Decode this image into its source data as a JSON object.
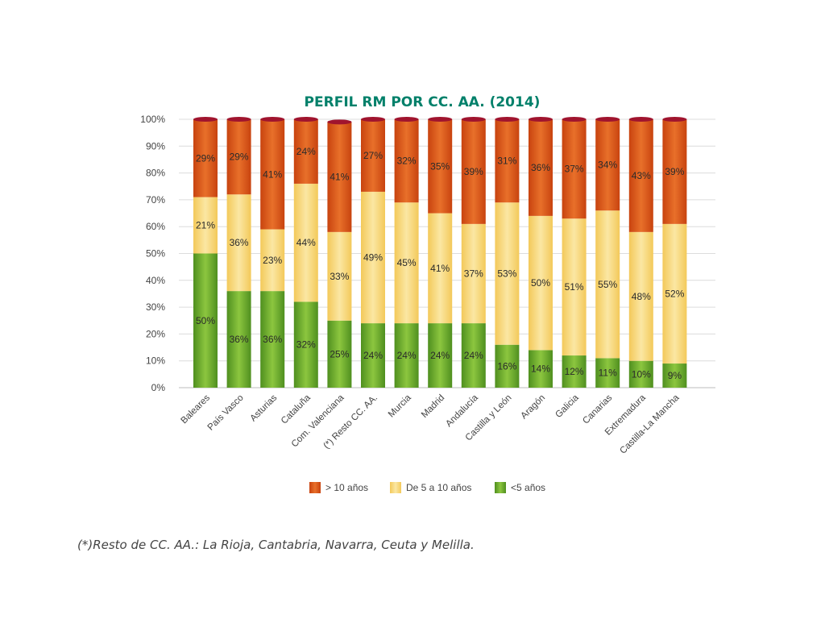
{
  "chart_data": {
    "type": "bar",
    "stacked": true,
    "title": "PERFIL RM POR CC. AA. (2014)",
    "categories": [
      "Baleares",
      "País Vasco",
      "Asturias",
      "Cataluña",
      "Com. Valenciana",
      "(*) Resto CC. AA.",
      "Murcia",
      "Madrid",
      "Andalucía",
      "Castilla y León",
      "Aragón",
      "Galicia",
      "Canarias",
      "Extremadura",
      "Castilla-La Mancha"
    ],
    "series": [
      {
        "name": "<5 años",
        "color": "#6fae2f",
        "values": [
          50,
          36,
          36,
          32,
          25,
          24,
          24,
          24,
          24,
          16,
          14,
          12,
          11,
          10,
          9
        ]
      },
      {
        "name": "De 5 a 10 años",
        "color": "#f7d777",
        "values": [
          21,
          36,
          23,
          44,
          33,
          49,
          45,
          41,
          37,
          53,
          50,
          51,
          55,
          48,
          52
        ]
      },
      {
        "name": "> 10 años",
        "color": "#d9561a",
        "values": [
          29,
          29,
          41,
          24,
          41,
          27,
          32,
          35,
          39,
          31,
          36,
          37,
          34,
          43,
          39
        ]
      }
    ],
    "legend_order": [
      "> 10 años",
      "De 5 a 10 años",
      "<5 años"
    ],
    "yticks": [
      "0%",
      "10%",
      "20%",
      "30%",
      "40%",
      "50%",
      "60%",
      "70%",
      "80%",
      "90%",
      "100%"
    ],
    "ylim": [
      0,
      100
    ],
    "grid": true,
    "legend_position": "bottom",
    "title_color": "#00806a"
  },
  "footnote": "(*)Resto de CC. AA.: La Rioja, Cantabria, Navarra, Ceuta y Melilla."
}
